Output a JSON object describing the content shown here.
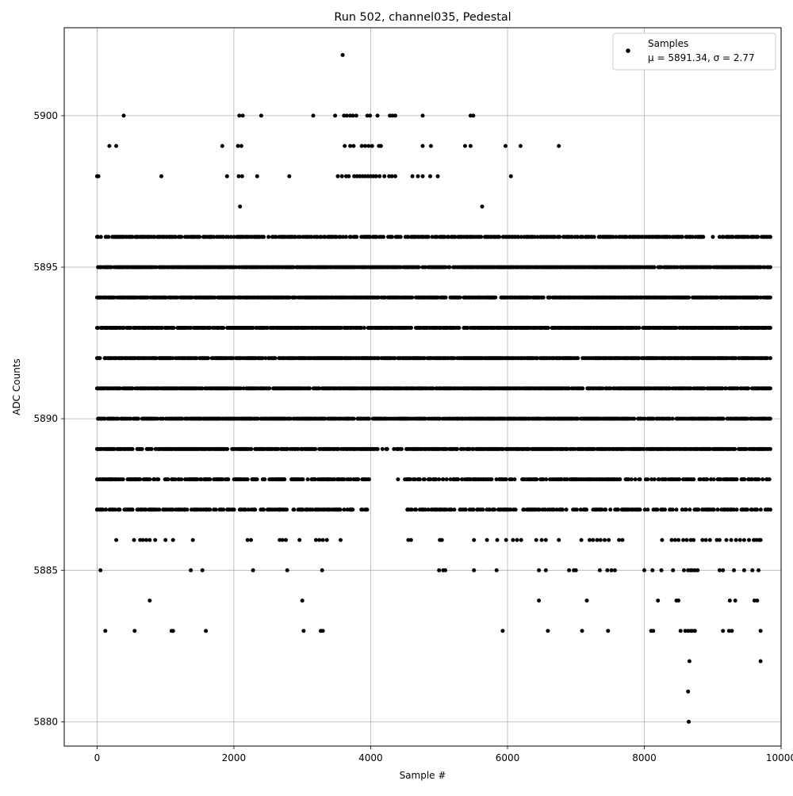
{
  "chart_data": {
    "type": "scatter",
    "title": "Run 502, channel035, Pedestal",
    "xlabel": "Sample #",
    "ylabel": "ADC Counts",
    "xlim": [
      -480,
      10000
    ],
    "ylim": [
      5879.2,
      5902.9
    ],
    "xticks": [
      0,
      2000,
      4000,
      6000,
      8000,
      10000
    ],
    "xtick_labels": [
      "0",
      "2000",
      "4000",
      "6000",
      "8000",
      "10000"
    ],
    "yticks": [
      5880,
      5885,
      5890,
      5895,
      5900
    ],
    "ytick_labels": [
      "5880",
      "5885",
      "5890",
      "5895",
      "5900"
    ],
    "grid": true,
    "legend": {
      "placement": "top-right",
      "label": "Samples",
      "stats": "μ = 5891.34, σ = 2.77"
    },
    "series": [
      {
        "name": "Samples",
        "color": "#000000",
        "x_max": 9850,
        "dense_band": [
          5887,
          5896
        ],
        "points": [
          [
            0,
            5898
          ],
          [
            20,
            5898
          ],
          [
            390,
            5900
          ],
          [
            2080,
            5900
          ],
          [
            2130,
            5900
          ],
          [
            2400,
            5900
          ],
          [
            3160,
            5900
          ],
          [
            3480,
            5900
          ],
          [
            3610,
            5900
          ],
          [
            3650,
            5900
          ],
          [
            3700,
            5900
          ],
          [
            3740,
            5900
          ],
          [
            3790,
            5900
          ],
          [
            3950,
            5900
          ],
          [
            3990,
            5900
          ],
          [
            4100,
            5900
          ],
          [
            4280,
            5900
          ],
          [
            4320,
            5900
          ],
          [
            4360,
            5900
          ],
          [
            4760,
            5900
          ],
          [
            5460,
            5900
          ],
          [
            5500,
            5900
          ],
          [
            180,
            5899
          ],
          [
            280,
            5899
          ],
          [
            1830,
            5899
          ],
          [
            2060,
            5899
          ],
          [
            2110,
            5899
          ],
          [
            3620,
            5899
          ],
          [
            3700,
            5899
          ],
          [
            3750,
            5899
          ],
          [
            3870,
            5899
          ],
          [
            3920,
            5899
          ],
          [
            3970,
            5899
          ],
          [
            4020,
            5899
          ],
          [
            4120,
            5899
          ],
          [
            4150,
            5899
          ],
          [
            4760,
            5899
          ],
          [
            4880,
            5899
          ],
          [
            5380,
            5899
          ],
          [
            5460,
            5899
          ],
          [
            5970,
            5899
          ],
          [
            6190,
            5899
          ],
          [
            6750,
            5899
          ],
          [
            940,
            5898
          ],
          [
            1900,
            5898
          ],
          [
            2070,
            5898
          ],
          [
            2120,
            5898
          ],
          [
            2340,
            5898
          ],
          [
            2810,
            5898
          ],
          [
            3520,
            5898
          ],
          [
            3580,
            5898
          ],
          [
            3640,
            5898
          ],
          [
            3680,
            5898
          ],
          [
            3760,
            5898
          ],
          [
            3800,
            5898
          ],
          [
            3840,
            5898
          ],
          [
            3880,
            5898
          ],
          [
            3920,
            5898
          ],
          [
            3960,
            5898
          ],
          [
            4000,
            5898
          ],
          [
            4040,
            5898
          ],
          [
            4080,
            5898
          ],
          [
            4130,
            5898
          ],
          [
            4200,
            5898
          ],
          [
            4270,
            5898
          ],
          [
            4310,
            5898
          ],
          [
            4360,
            5898
          ],
          [
            4610,
            5898
          ],
          [
            4690,
            5898
          ],
          [
            4760,
            5898
          ],
          [
            4870,
            5898
          ],
          [
            4980,
            5898
          ],
          [
            6050,
            5898
          ],
          [
            2090,
            5897
          ],
          [
            5630,
            5897
          ],
          [
            3590,
            5902
          ],
          [
            40,
            5888
          ],
          [
            110,
            5888
          ],
          [
            190,
            5888
          ],
          [
            380,
            5888
          ],
          [
            470,
            5888
          ],
          [
            560,
            5888
          ],
          [
            610,
            5888
          ],
          [
            680,
            5888
          ],
          [
            770,
            5888
          ],
          [
            830,
            5888
          ],
          [
            880,
            5888
          ],
          [
            1040,
            5888
          ],
          [
            1120,
            5888
          ],
          [
            1200,
            5888
          ],
          [
            1350,
            5888
          ],
          [
            1440,
            5888
          ],
          [
            1580,
            5888
          ],
          [
            1640,
            5888
          ],
          [
            1750,
            5888
          ],
          [
            1900,
            5888
          ],
          [
            2200,
            5888
          ],
          [
            2270,
            5888
          ],
          [
            2310,
            5888
          ],
          [
            2560,
            5888
          ],
          [
            2660,
            5888
          ],
          [
            2700,
            5888
          ],
          [
            2740,
            5888
          ],
          [
            2850,
            5888
          ],
          [
            2960,
            5888
          ],
          [
            3080,
            5888
          ],
          [
            3280,
            5888
          ],
          [
            3320,
            5888
          ],
          [
            3370,
            5888
          ],
          [
            3420,
            5888
          ],
          [
            3530,
            5888
          ],
          [
            3600,
            5888
          ],
          [
            3820,
            5888
          ],
          [
            4400,
            5888
          ],
          [
            4500,
            5888
          ],
          [
            4560,
            5888
          ],
          [
            4620,
            5888
          ],
          [
            4700,
            5888
          ],
          [
            4850,
            5888
          ],
          [
            5000,
            5888
          ],
          [
            5060,
            5888
          ],
          [
            5260,
            5888
          ],
          [
            5500,
            5888
          ],
          [
            0,
            5887
          ],
          [
            60,
            5887
          ],
          [
            130,
            5887
          ],
          [
            220,
            5887
          ],
          [
            330,
            5887
          ],
          [
            400,
            5887
          ],
          [
            450,
            5887
          ],
          [
            1000,
            5887
          ],
          [
            1280,
            5887
          ],
          [
            1380,
            5887
          ],
          [
            1600,
            5887
          ],
          [
            1980,
            5887
          ],
          [
            2110,
            5887
          ],
          [
            2420,
            5887
          ],
          [
            2670,
            5887
          ],
          [
            2880,
            5887
          ],
          [
            2990,
            5887
          ],
          [
            3060,
            5887
          ],
          [
            3250,
            5887
          ],
          [
            3400,
            5887
          ],
          [
            3660,
            5887
          ],
          [
            3720,
            5887
          ],
          [
            4540,
            5887
          ],
          [
            4600,
            5887
          ],
          [
            5000,
            5887
          ],
          [
            5040,
            5887
          ],
          [
            5080,
            5887
          ],
          [
            5150,
            5887
          ],
          [
            5500,
            5887
          ],
          [
            5560,
            5887
          ],
          [
            5640,
            5887
          ],
          [
            280,
            5886
          ],
          [
            540,
            5886
          ],
          [
            630,
            5886
          ],
          [
            670,
            5886
          ],
          [
            720,
            5886
          ],
          [
            770,
            5886
          ],
          [
            850,
            5886
          ],
          [
            1000,
            5886
          ],
          [
            1110,
            5886
          ],
          [
            1400,
            5886
          ],
          [
            2200,
            5886
          ],
          [
            2250,
            5886
          ],
          [
            2670,
            5886
          ],
          [
            2710,
            5886
          ],
          [
            2760,
            5886
          ],
          [
            2960,
            5886
          ],
          [
            3200,
            5886
          ],
          [
            3250,
            5886
          ],
          [
            3300,
            5886
          ],
          [
            3360,
            5886
          ],
          [
            3560,
            5886
          ],
          [
            4550,
            5886
          ],
          [
            4590,
            5886
          ],
          [
            5010,
            5886
          ],
          [
            5040,
            5886
          ],
          [
            5510,
            5886
          ],
          [
            5700,
            5886
          ],
          [
            5850,
            5886
          ],
          [
            5980,
            5886
          ],
          [
            6080,
            5886
          ],
          [
            6140,
            5886
          ],
          [
            6200,
            5886
          ],
          [
            6420,
            5886
          ],
          [
            6500,
            5886
          ],
          [
            6560,
            5886
          ],
          [
            6750,
            5886
          ],
          [
            7080,
            5886
          ],
          [
            7200,
            5886
          ],
          [
            7250,
            5886
          ],
          [
            7310,
            5886
          ],
          [
            7360,
            5886
          ],
          [
            7420,
            5886
          ],
          [
            7480,
            5886
          ],
          [
            7630,
            5886
          ],
          [
            7680,
            5886
          ],
          [
            8260,
            5886
          ],
          [
            8400,
            5886
          ],
          [
            8450,
            5886
          ],
          [
            8500,
            5886
          ],
          [
            8570,
            5886
          ],
          [
            8620,
            5886
          ],
          [
            8680,
            5886
          ],
          [
            8720,
            5886
          ],
          [
            8850,
            5886
          ],
          [
            8900,
            5886
          ],
          [
            8960,
            5886
          ],
          [
            9060,
            5886
          ],
          [
            9100,
            5886
          ],
          [
            9200,
            5886
          ],
          [
            9270,
            5886
          ],
          [
            9340,
            5886
          ],
          [
            9400,
            5886
          ],
          [
            9460,
            5886
          ],
          [
            9530,
            5886
          ],
          [
            9600,
            5886
          ],
          [
            9640,
            5886
          ],
          [
            9680,
            5886
          ],
          [
            9700,
            5886
          ],
          [
            50,
            5885
          ],
          [
            1370,
            5885
          ],
          [
            1540,
            5885
          ],
          [
            2280,
            5885
          ],
          [
            2780,
            5885
          ],
          [
            3290,
            5885
          ],
          [
            5000,
            5885
          ],
          [
            5060,
            5885
          ],
          [
            5090,
            5885
          ],
          [
            5510,
            5885
          ],
          [
            5840,
            5885
          ],
          [
            6460,
            5885
          ],
          [
            6560,
            5885
          ],
          [
            6900,
            5885
          ],
          [
            6970,
            5885
          ],
          [
            7000,
            5885
          ],
          [
            7350,
            5885
          ],
          [
            7460,
            5885
          ],
          [
            7520,
            5885
          ],
          [
            7570,
            5885
          ],
          [
            8000,
            5885
          ],
          [
            8120,
            5885
          ],
          [
            8250,
            5885
          ],
          [
            8420,
            5885
          ],
          [
            8580,
            5885
          ],
          [
            8640,
            5885
          ],
          [
            8680,
            5885
          ],
          [
            8700,
            5885
          ],
          [
            8740,
            5885
          ],
          [
            8780,
            5885
          ],
          [
            9100,
            5885
          ],
          [
            9150,
            5885
          ],
          [
            9310,
            5885
          ],
          [
            9460,
            5885
          ],
          [
            9580,
            5885
          ],
          [
            9670,
            5885
          ],
          [
            770,
            5884
          ],
          [
            3000,
            5884
          ],
          [
            6460,
            5884
          ],
          [
            7160,
            5884
          ],
          [
            8200,
            5884
          ],
          [
            8470,
            5884
          ],
          [
            8500,
            5884
          ],
          [
            9250,
            5884
          ],
          [
            9330,
            5884
          ],
          [
            9610,
            5884
          ],
          [
            9650,
            5884
          ],
          [
            120,
            5883
          ],
          [
            550,
            5883
          ],
          [
            1090,
            5883
          ],
          [
            1110,
            5883
          ],
          [
            1590,
            5883
          ],
          [
            3020,
            5883
          ],
          [
            3270,
            5883
          ],
          [
            3300,
            5883
          ],
          [
            5930,
            5883
          ],
          [
            6590,
            5883
          ],
          [
            7090,
            5883
          ],
          [
            7470,
            5883
          ],
          [
            8100,
            5883
          ],
          [
            8130,
            5883
          ],
          [
            8530,
            5883
          ],
          [
            8600,
            5883
          ],
          [
            8640,
            5883
          ],
          [
            8680,
            5883
          ],
          [
            8700,
            5883
          ],
          [
            8740,
            5883
          ],
          [
            9150,
            5883
          ],
          [
            9240,
            5883
          ],
          [
            9280,
            5883
          ],
          [
            9700,
            5883
          ],
          [
            8660,
            5882
          ],
          [
            9700,
            5882
          ],
          [
            8640,
            5881
          ],
          [
            8650,
            5880
          ]
        ]
      }
    ]
  }
}
